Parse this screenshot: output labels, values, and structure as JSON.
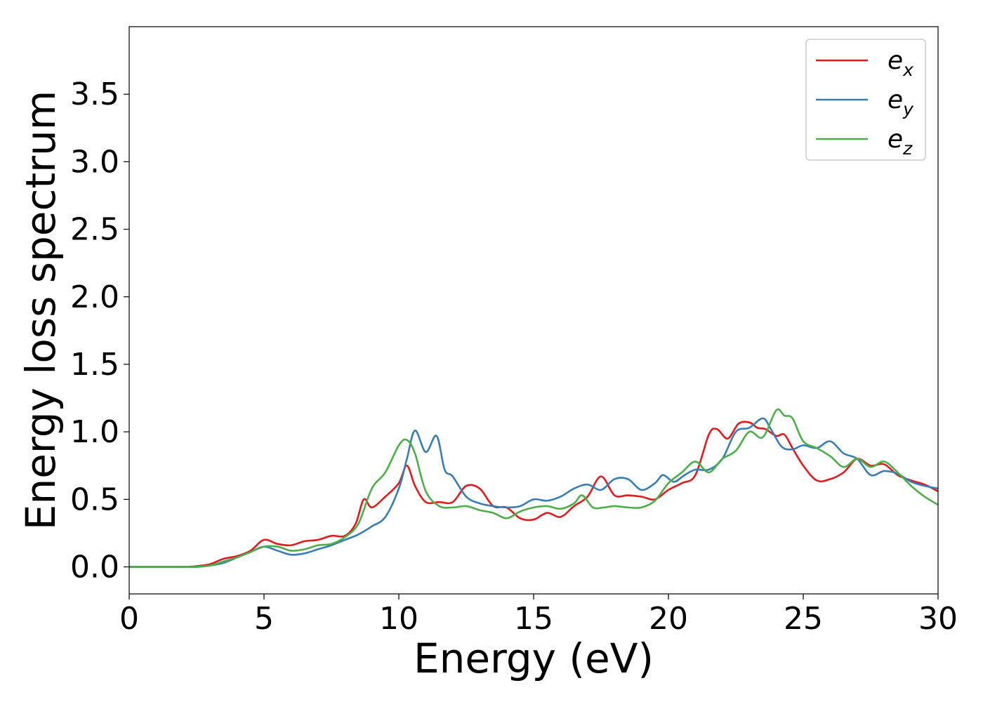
{
  "chart_data": {
    "type": "line",
    "xlabel": "Energy (eV)",
    "ylabel": "Energy loss spectrum",
    "xlim": [
      0,
      30
    ],
    "ylim": [
      -0.2,
      4.0
    ],
    "xticks": [
      0,
      5,
      10,
      15,
      20,
      25,
      30
    ],
    "xtick_labels": [
      "0",
      "5",
      "10",
      "15",
      "20",
      "25",
      "30"
    ],
    "yticks": [
      0.0,
      0.5,
      1.0,
      1.5,
      2.0,
      2.5,
      3.0,
      3.5
    ],
    "ytick_labels": [
      "0.0",
      "0.5",
      "1.0",
      "1.5",
      "2.0",
      "2.5",
      "3.0",
      "3.5"
    ],
    "grid": false,
    "legend_position": "top-right",
    "series": [
      {
        "name": "e",
        "subscript": "x",
        "color": "#e41a1c",
        "x": [
          0,
          1,
          2,
          2.5,
          3,
          3.5,
          4,
          4.5,
          5,
          5.5,
          6,
          6.5,
          7,
          7.5,
          8,
          8.4,
          8.7,
          9,
          9.5,
          10,
          10.3,
          10.6,
          11,
          11.5,
          12,
          12.5,
          13,
          13.5,
          14,
          14.5,
          15,
          15.5,
          16,
          16.5,
          17,
          17.5,
          18,
          18.5,
          19,
          19.5,
          20,
          20.5,
          21,
          21.5,
          21.8,
          22.2,
          22.6,
          23,
          23.3,
          23.6,
          24,
          24.3,
          24.6,
          25,
          25.5,
          26,
          26.5,
          27,
          27.5,
          28,
          28.5,
          29,
          29.5,
          30
        ],
        "y": [
          0,
          0,
          0,
          0.005,
          0.02,
          0.06,
          0.08,
          0.12,
          0.2,
          0.17,
          0.16,
          0.19,
          0.2,
          0.23,
          0.23,
          0.32,
          0.5,
          0.44,
          0.52,
          0.62,
          0.75,
          0.6,
          0.48,
          0.48,
          0.48,
          0.6,
          0.58,
          0.45,
          0.44,
          0.36,
          0.35,
          0.4,
          0.37,
          0.45,
          0.52,
          0.67,
          0.53,
          0.53,
          0.52,
          0.5,
          0.57,
          0.62,
          0.68,
          0.98,
          1.02,
          0.95,
          1.06,
          1.07,
          1.03,
          1.02,
          0.97,
          0.98,
          0.88,
          0.75,
          0.64,
          0.65,
          0.7,
          0.8,
          0.75,
          0.76,
          0.68,
          0.64,
          0.61,
          0.56
        ]
      },
      {
        "name": "e",
        "subscript": "y",
        "color": "#377eb8",
        "x": [
          0,
          1,
          2,
          2.5,
          3,
          3.5,
          4,
          4.5,
          5,
          5.5,
          6,
          6.5,
          7,
          7.5,
          8,
          8.5,
          9,
          9.5,
          10,
          10.3,
          10.6,
          11,
          11.4,
          11.7,
          12,
          12.5,
          13,
          13.5,
          14,
          14.5,
          15,
          15.5,
          16,
          16.5,
          17,
          17.5,
          18,
          18.5,
          19,
          19.5,
          19.8,
          20.2,
          20.6,
          21,
          21.5,
          22,
          22.5,
          23,
          23.5,
          23.8,
          24.2,
          24.6,
          25,
          25.5,
          26,
          26.5,
          27,
          27.5,
          28,
          28.5,
          29,
          29.5,
          30
        ],
        "y": [
          0,
          0,
          0,
          0,
          0.01,
          0.03,
          0.07,
          0.11,
          0.15,
          0.12,
          0.09,
          0.1,
          0.13,
          0.16,
          0.2,
          0.24,
          0.3,
          0.37,
          0.58,
          0.8,
          1.01,
          0.85,
          0.97,
          0.72,
          0.67,
          0.52,
          0.47,
          0.45,
          0.44,
          0.45,
          0.5,
          0.49,
          0.52,
          0.58,
          0.61,
          0.57,
          0.65,
          0.65,
          0.57,
          0.62,
          0.68,
          0.63,
          0.68,
          0.72,
          0.72,
          0.8,
          1.0,
          1.03,
          1.1,
          1.02,
          0.89,
          0.87,
          0.9,
          0.88,
          0.93,
          0.84,
          0.8,
          0.68,
          0.71,
          0.69,
          0.63,
          0.6,
          0.58
        ]
      },
      {
        "name": "e",
        "subscript": "z",
        "color": "#4daf4a",
        "x": [
          0,
          1,
          2,
          2.5,
          3,
          3.5,
          4,
          4.5,
          5,
          5.5,
          6,
          6.5,
          7,
          7.5,
          8,
          8.5,
          9,
          9.5,
          10,
          10.3,
          10.6,
          11,
          11.5,
          12,
          12.5,
          13,
          13.5,
          14,
          14.5,
          15,
          15.5,
          16,
          16.5,
          16.8,
          17.2,
          17.6,
          18,
          18.5,
          19,
          19.5,
          20,
          20.5,
          21,
          21.5,
          22,
          22.5,
          23,
          23.5,
          24,
          24.3,
          24.6,
          25,
          25.5,
          26,
          26.5,
          27,
          27.5,
          28,
          28.5,
          29,
          29.5,
          30
        ],
        "y": [
          0,
          0,
          0,
          0,
          0.01,
          0.04,
          0.07,
          0.11,
          0.15,
          0.15,
          0.12,
          0.13,
          0.16,
          0.17,
          0.22,
          0.32,
          0.58,
          0.7,
          0.9,
          0.94,
          0.84,
          0.56,
          0.45,
          0.44,
          0.45,
          0.42,
          0.4,
          0.36,
          0.41,
          0.44,
          0.45,
          0.43,
          0.47,
          0.53,
          0.44,
          0.44,
          0.45,
          0.44,
          0.44,
          0.49,
          0.62,
          0.7,
          0.78,
          0.7,
          0.8,
          0.86,
          1.0,
          0.96,
          1.16,
          1.12,
          1.1,
          0.93,
          0.88,
          0.82,
          0.74,
          0.8,
          0.74,
          0.78,
          0.7,
          0.6,
          0.52,
          0.46
        ]
      }
    ]
  }
}
